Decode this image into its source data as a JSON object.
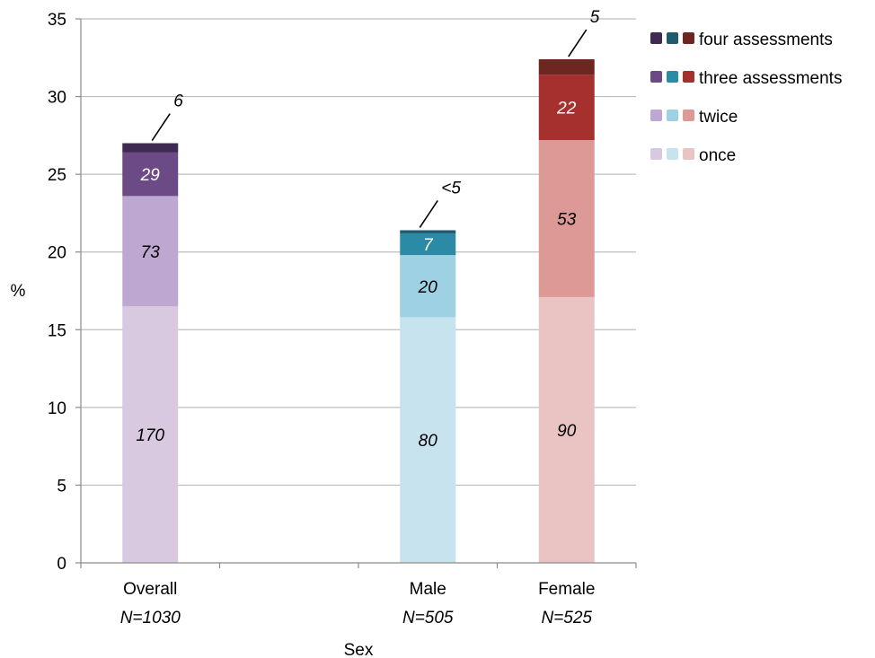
{
  "chart_data": {
    "type": "bar",
    "stacked": true,
    "xlabel": "Sex",
    "ylabel": "%",
    "ylim": [
      0,
      35
    ],
    "yticks": [
      0,
      5,
      10,
      15,
      20,
      25,
      30,
      35
    ],
    "grid": true,
    "legend_position": "right",
    "categories": [
      {
        "label": "Overall",
        "n": "N=1030"
      },
      {
        "label": "",
        "n": ""
      },
      {
        "label": "Male",
        "n": "N=505"
      },
      {
        "label": "Female",
        "n": "N=525"
      }
    ],
    "series": [
      {
        "name": "once",
        "values": [
          16.5,
          null,
          15.8,
          17.1
        ],
        "labels": [
          "170",
          "",
          "80",
          "90"
        ]
      },
      {
        "name": "twice",
        "values": [
          7.1,
          null,
          4.0,
          10.1
        ],
        "labels": [
          "73",
          "",
          "20",
          "53"
        ]
      },
      {
        "name": "three assessments",
        "values": [
          2.8,
          null,
          1.4,
          4.2
        ],
        "labels": [
          "29",
          "",
          "7",
          "22"
        ]
      },
      {
        "name": "four assessments",
        "values": [
          0.6,
          null,
          0.2,
          1.0
        ],
        "labels": [
          "6",
          "",
          "<5",
          "5"
        ]
      }
    ],
    "colors": {
      "Overall": [
        "#d8c8e0",
        "#bea8d1",
        "#6b4a86",
        "#3f2a52"
      ],
      "Male": [
        "#c6e3ee",
        "#9dd1e3",
        "#2b8aa6",
        "#1f5a6e"
      ],
      "Female": [
        "#eac3c3",
        "#dc9996",
        "#a5302d",
        "#6e2621"
      ]
    }
  }
}
